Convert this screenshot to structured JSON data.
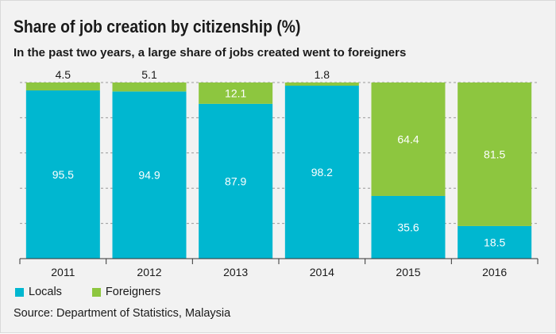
{
  "title": "Share of job creation by citizenship (%)",
  "subtitle": "In the past two years, a large share of jobs created went to foreigners",
  "source": "Source: Department of Statistics, Malaysia",
  "colors": {
    "locals": "#00b7d0",
    "foreigners": "#8dc63f",
    "gridline": "#9a9a9a",
    "label_inside": "#ffffff",
    "label_outside": "#1a1a1a"
  },
  "chart_data": {
    "type": "bar",
    "stacked": true,
    "categories": [
      "2011",
      "2012",
      "2013",
      "2014",
      "2015",
      "2016"
    ],
    "series": [
      {
        "name": "Locals",
        "values": [
          95.5,
          94.9,
          87.9,
          98.2,
          35.6,
          18.5
        ]
      },
      {
        "name": "Foreigners",
        "values": [
          4.5,
          5.1,
          12.1,
          1.8,
          64.4,
          81.5
        ]
      }
    ],
    "ylim": [
      0,
      100
    ],
    "grid": true,
    "legend": "bottom-left"
  }
}
